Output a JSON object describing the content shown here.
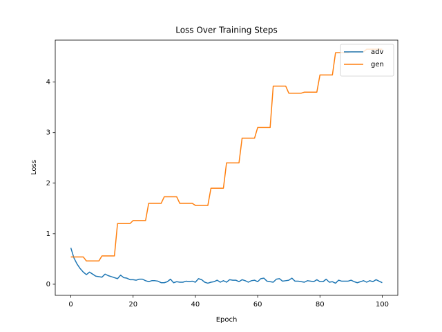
{
  "chart_data": {
    "type": "line",
    "title": "Loss Over Training Steps",
    "x_label": "Epoch",
    "y_label": "Loss",
    "x": [
      0,
      1,
      2,
      3,
      4,
      5,
      6,
      7,
      8,
      9,
      10,
      11,
      12,
      13,
      14,
      15,
      16,
      17,
      18,
      19,
      20,
      21,
      22,
      23,
      24,
      25,
      26,
      27,
      28,
      29,
      30,
      31,
      32,
      33,
      34,
      35,
      36,
      37,
      38,
      39,
      40,
      41,
      42,
      43,
      44,
      45,
      46,
      47,
      48,
      49,
      50,
      51,
      52,
      53,
      54,
      55,
      56,
      57,
      58,
      59,
      60,
      61,
      62,
      63,
      64,
      65,
      66,
      67,
      68,
      69,
      70,
      71,
      72,
      73,
      74,
      75,
      76,
      77,
      78,
      79,
      80,
      81,
      82,
      83,
      84,
      85,
      86,
      87,
      88,
      89,
      90,
      91,
      92,
      93,
      94,
      95,
      96,
      97,
      98,
      99,
      100
    ],
    "series": [
      {
        "name": "adv",
        "color": "#1f77b4",
        "values": [
          0.72,
          0.52,
          0.4,
          0.31,
          0.24,
          0.19,
          0.24,
          0.2,
          0.16,
          0.15,
          0.14,
          0.2,
          0.17,
          0.15,
          0.13,
          0.11,
          0.18,
          0.13,
          0.12,
          0.09,
          0.09,
          0.08,
          0.1,
          0.1,
          0.07,
          0.05,
          0.07,
          0.07,
          0.06,
          0.03,
          0.03,
          0.05,
          0.1,
          0.03,
          0.05,
          0.04,
          0.04,
          0.06,
          0.05,
          0.06,
          0.04,
          0.11,
          0.09,
          0.04,
          0.02,
          0.04,
          0.05,
          0.08,
          0.04,
          0.07,
          0.04,
          0.09,
          0.08,
          0.08,
          0.05,
          0.09,
          0.07,
          0.04,
          0.07,
          0.08,
          0.05,
          0.11,
          0.12,
          0.06,
          0.05,
          0.04,
          0.1,
          0.11,
          0.06,
          0.07,
          0.08,
          0.12,
          0.06,
          0.06,
          0.05,
          0.04,
          0.07,
          0.06,
          0.05,
          0.09,
          0.05,
          0.05,
          0.1,
          0.04,
          0.05,
          0.02,
          0.08,
          0.06,
          0.06,
          0.06,
          0.08,
          0.05,
          0.03,
          0.05,
          0.07,
          0.04,
          0.07,
          0.05,
          0.09,
          0.06,
          0.03
        ]
      },
      {
        "name": "gen",
        "color": "#ff7f0e",
        "values": [
          0.54,
          0.54,
          0.54,
          0.54,
          0.54,
          0.46,
          0.46,
          0.46,
          0.46,
          0.46,
          0.56,
          0.56,
          0.56,
          0.56,
          0.56,
          1.2,
          1.2,
          1.2,
          1.2,
          1.2,
          1.26,
          1.26,
          1.26,
          1.26,
          1.26,
          1.6,
          1.6,
          1.6,
          1.6,
          1.6,
          1.73,
          1.73,
          1.73,
          1.73,
          1.73,
          1.6,
          1.6,
          1.6,
          1.6,
          1.6,
          1.56,
          1.56,
          1.56,
          1.56,
          1.56,
          1.9,
          1.9,
          1.9,
          1.9,
          1.9,
          2.4,
          2.4,
          2.4,
          2.4,
          2.4,
          2.89,
          2.89,
          2.89,
          2.89,
          2.89,
          3.1,
          3.1,
          3.1,
          3.1,
          3.1,
          3.92,
          3.92,
          3.92,
          3.92,
          3.92,
          3.78,
          3.78,
          3.78,
          3.78,
          3.78,
          3.8,
          3.8,
          3.8,
          3.8,
          3.8,
          4.14,
          4.14,
          4.14,
          4.14,
          4.14,
          4.58,
          4.58,
          4.58,
          4.58,
          4.58,
          4.6,
          4.6,
          4.6,
          4.6,
          4.6,
          4.65,
          4.65,
          4.65,
          4.65,
          4.65,
          4.65
        ]
      }
    ],
    "xlim": [
      -5,
      105
    ],
    "ylim": [
      -0.22,
      4.83
    ],
    "xticks": [
      0,
      20,
      40,
      60,
      80,
      100
    ],
    "yticks": [
      0,
      1,
      2,
      3,
      4
    ],
    "legend": "upper right"
  }
}
